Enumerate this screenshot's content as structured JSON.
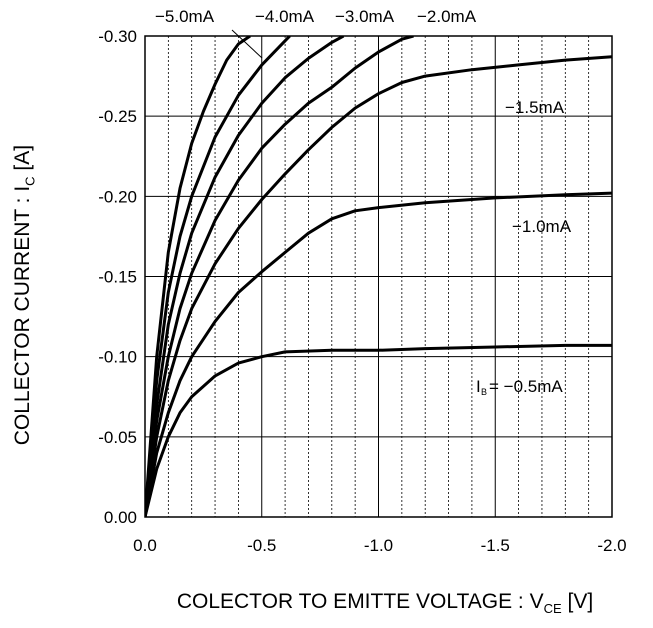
{
  "chart_data": {
    "type": "line",
    "title": "",
    "ylabel": {
      "main": "COLLECTOR CURRENT : I",
      "sub": "C",
      "unit": " [A]"
    },
    "xlabel": {
      "main": "COLECTOR TO EMITTE VOLTAGE : V",
      "sub": "CE",
      "unit": " [V]"
    },
    "xlim": [
      0,
      -2.0
    ],
    "ylim": [
      0,
      -0.3
    ],
    "xticks": [
      0,
      -0.5,
      -1.0,
      -1.5,
      -2.0
    ],
    "xtick_labels": [
      "0.0",
      "-0.5",
      "-1.0",
      "-1.5",
      "-2.0"
    ],
    "yticks": [
      0,
      -0.05,
      -0.1,
      -0.15,
      -0.2,
      -0.25,
      -0.3
    ],
    "ytick_labels": [
      "0.00",
      "-0.05",
      "-0.10",
      "-0.15",
      "-0.20",
      "-0.25",
      "-0.30"
    ],
    "minor_x_step": -0.1,
    "grid": true,
    "series": [
      {
        "name": "−0.5mA",
        "label_prefix": "I",
        "label_prefix_sub": "B",
        "label_text": "= −0.5mA",
        "points": [
          [
            0,
            0
          ],
          [
            -0.05,
            -0.03
          ],
          [
            -0.1,
            -0.05
          ],
          [
            -0.15,
            -0.065
          ],
          [
            -0.2,
            -0.075
          ],
          [
            -0.3,
            -0.088
          ],
          [
            -0.4,
            -0.096
          ],
          [
            -0.5,
            -0.1
          ],
          [
            -0.6,
            -0.103
          ],
          [
            -0.8,
            -0.104
          ],
          [
            -1.0,
            -0.104
          ],
          [
            -1.2,
            -0.105
          ],
          [
            -1.5,
            -0.106
          ],
          [
            -1.8,
            -0.107
          ],
          [
            -2.0,
            -0.107
          ]
        ]
      },
      {
        "name": "−1.0mA",
        "label_text": "−1.0mA",
        "points": [
          [
            0,
            0
          ],
          [
            -0.05,
            -0.04
          ],
          [
            -0.1,
            -0.065
          ],
          [
            -0.15,
            -0.085
          ],
          [
            -0.2,
            -0.1
          ],
          [
            -0.3,
            -0.122
          ],
          [
            -0.4,
            -0.14
          ],
          [
            -0.5,
            -0.153
          ],
          [
            -0.6,
            -0.165
          ],
          [
            -0.7,
            -0.177
          ],
          [
            -0.8,
            -0.186
          ],
          [
            -0.9,
            -0.191
          ],
          [
            -1.0,
            -0.193
          ],
          [
            -1.2,
            -0.196
          ],
          [
            -1.5,
            -0.199
          ],
          [
            -1.8,
            -0.201
          ],
          [
            -2.0,
            -0.202
          ]
        ]
      },
      {
        "name": "−1.5mA",
        "label_text": "−1.5mA",
        "points": [
          [
            0,
            0
          ],
          [
            -0.05,
            -0.05
          ],
          [
            -0.1,
            -0.085
          ],
          [
            -0.15,
            -0.11
          ],
          [
            -0.2,
            -0.13
          ],
          [
            -0.3,
            -0.158
          ],
          [
            -0.4,
            -0.18
          ],
          [
            -0.5,
            -0.198
          ],
          [
            -0.6,
            -0.214
          ],
          [
            -0.7,
            -0.229
          ],
          [
            -0.8,
            -0.243
          ],
          [
            -0.9,
            -0.255
          ],
          [
            -1.0,
            -0.264
          ],
          [
            -1.1,
            -0.271
          ],
          [
            -1.2,
            -0.275
          ],
          [
            -1.4,
            -0.279
          ],
          [
            -1.6,
            -0.282
          ],
          [
            -1.8,
            -0.285
          ],
          [
            -2.0,
            -0.287
          ]
        ]
      },
      {
        "name": "−2.0mA",
        "label_text": "−2.0mA",
        "points": [
          [
            0,
            0
          ],
          [
            -0.05,
            -0.06
          ],
          [
            -0.1,
            -0.1
          ],
          [
            -0.15,
            -0.13
          ],
          [
            -0.2,
            -0.152
          ],
          [
            -0.3,
            -0.185
          ],
          [
            -0.4,
            -0.21
          ],
          [
            -0.5,
            -0.23
          ],
          [
            -0.6,
            -0.245
          ],
          [
            -0.7,
            -0.258
          ],
          [
            -0.8,
            -0.268
          ],
          [
            -0.9,
            -0.28
          ],
          [
            -1.0,
            -0.29
          ],
          [
            -1.1,
            -0.298
          ],
          [
            -1.15,
            -0.3
          ]
        ]
      },
      {
        "name": "−3.0mA",
        "label_text": "−3.0mA",
        "points": [
          [
            0,
            0
          ],
          [
            -0.05,
            -0.07
          ],
          [
            -0.1,
            -0.12
          ],
          [
            -0.15,
            -0.152
          ],
          [
            -0.2,
            -0.177
          ],
          [
            -0.3,
            -0.212
          ],
          [
            -0.4,
            -0.238
          ],
          [
            -0.5,
            -0.258
          ],
          [
            -0.6,
            -0.274
          ],
          [
            -0.7,
            -0.286
          ],
          [
            -0.8,
            -0.296
          ],
          [
            -0.85,
            -0.3
          ]
        ]
      },
      {
        "name": "−4.0mA",
        "label_text": "−4.0mA",
        "points": [
          [
            0,
            0
          ],
          [
            -0.05,
            -0.085
          ],
          [
            -0.1,
            -0.14
          ],
          [
            -0.15,
            -0.175
          ],
          [
            -0.2,
            -0.2
          ],
          [
            -0.3,
            -0.237
          ],
          [
            -0.4,
            -0.263
          ],
          [
            -0.5,
            -0.282
          ],
          [
            -0.6,
            -0.297
          ],
          [
            -0.62,
            -0.3
          ]
        ]
      },
      {
        "name": "−5.0mA",
        "label_text": "−5.0mA",
        "points": [
          [
            0,
            0
          ],
          [
            -0.05,
            -0.1
          ],
          [
            -0.1,
            -0.165
          ],
          [
            -0.15,
            -0.205
          ],
          [
            -0.2,
            -0.233
          ],
          [
            -0.25,
            -0.253
          ],
          [
            -0.3,
            -0.27
          ],
          [
            -0.35,
            -0.285
          ],
          [
            -0.4,
            -0.295
          ],
          [
            -0.45,
            -0.3
          ]
        ]
      }
    ],
    "annotations": [
      {
        "text": "−5.0mA"
      },
      {
        "text": "−4.0mA"
      },
      {
        "text": "−3.0mA"
      },
      {
        "text": "−2.0mA"
      },
      {
        "text": "−1.5mA"
      },
      {
        "text": "−1.0mA"
      },
      {
        "text": "I",
        "sub": "B",
        "rest": "= −0.5mA"
      }
    ]
  }
}
